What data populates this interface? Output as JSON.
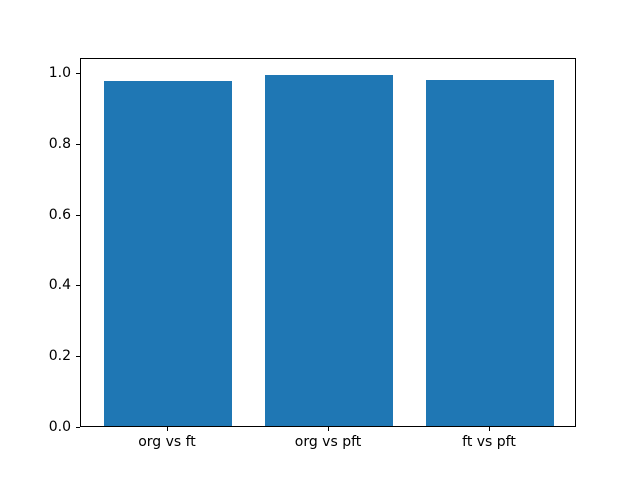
{
  "figure": {
    "background_color": "#ffffff",
    "axis_color": "#000000",
    "tick_label_color": "#000000"
  },
  "chart_data": {
    "type": "bar",
    "title": "",
    "xlabel": "",
    "ylabel": "",
    "categories": [
      "org vs ft",
      "org vs pft",
      "ft vs pft"
    ],
    "values": [
      0.976,
      0.994,
      0.98
    ],
    "bar_color": "#1f77b4",
    "bar_width_units": 0.8,
    "xlim": [
      -0.54,
      2.54
    ],
    "ylim": [
      0,
      1.045
    ],
    "yticks": [
      0.0,
      0.2,
      0.4,
      0.6,
      0.8,
      1.0
    ],
    "ytick_labels": [
      "0.0",
      "0.2",
      "0.4",
      "0.6",
      "0.8",
      "1.0"
    ],
    "grid": false,
    "legend": null
  }
}
